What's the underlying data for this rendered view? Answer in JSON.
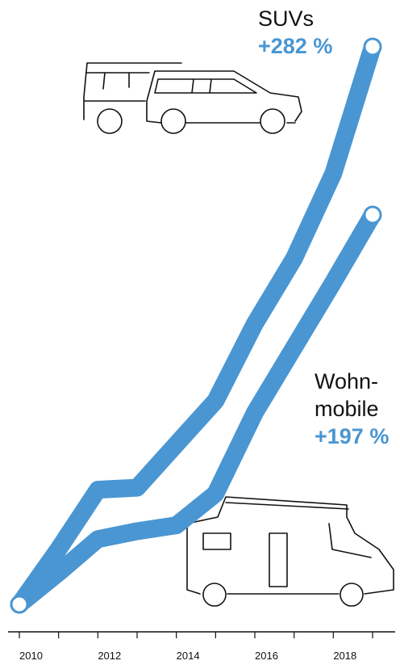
{
  "chart_data": {
    "type": "line",
    "x": [
      2010,
      2011,
      2012,
      2013,
      2014,
      2015,
      2016,
      2017,
      2018,
      2019
    ],
    "series": [
      {
        "name": "SUVs",
        "color": "#4a96d2",
        "values": [
          0,
          28,
          58,
          59,
          81,
          103,
          142,
          175,
          218,
          282
        ],
        "end_label": "+282 %"
      },
      {
        "name": "Wohn-mobile",
        "color": "#4a96d2",
        "values": [
          0,
          16,
          33,
          37,
          40,
          56,
          97,
          130,
          163,
          197
        ],
        "end_label": "+197 %"
      }
    ],
    "xlim": [
      2010,
      2019
    ],
    "xticks": [
      2010,
      2012,
      2014,
      2016,
      2018
    ],
    "minor_xticks": [
      2011,
      2013,
      2015,
      2017,
      2019
    ],
    "ylim": [
      0,
      282
    ]
  }
}
